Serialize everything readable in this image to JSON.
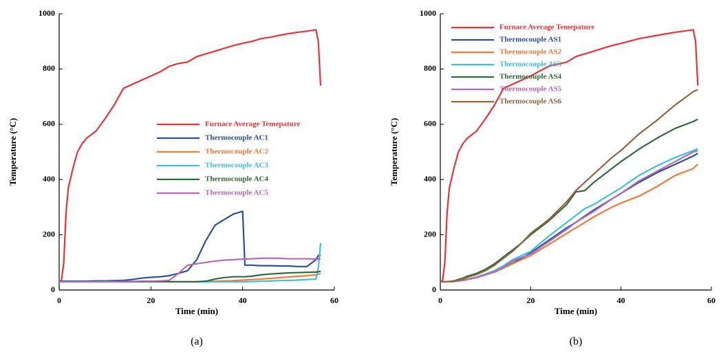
{
  "chart_data": [
    {
      "type": "line",
      "caption": "(a)",
      "xlabel": "Time (min)",
      "ylabel": "Temperature (°C)",
      "xlim": [
        0,
        60
      ],
      "ylim": [
        0,
        1000
      ],
      "xticks": [
        0,
        20,
        40,
        60
      ],
      "yticks": [
        0,
        200,
        400,
        600,
        800,
        1000
      ],
      "grid": false,
      "legend": "center right",
      "x": [
        0,
        0.5,
        1,
        1.5,
        2,
        3,
        4,
        5,
        6,
        8,
        10,
        12,
        14,
        16,
        18,
        20,
        22,
        24,
        26,
        28,
        30,
        32,
        34,
        36,
        38,
        40,
        40.5,
        42,
        44,
        46,
        48,
        50,
        52,
        54,
        56,
        56.5,
        57
      ],
      "series": [
        {
          "name": "Furnace Average Temepature",
          "color": "#e8333a",
          "values": [
            30,
            35,
            100,
            280,
            370,
            440,
            500,
            530,
            550,
            575,
            620,
            670,
            730,
            745,
            760,
            775,
            790,
            810,
            820,
            825,
            845,
            855,
            865,
            875,
            885,
            893,
            895,
            900,
            910,
            915,
            922,
            928,
            933,
            937,
            942,
            900,
            740
          ]
        },
        {
          "name": "Thermocouple AC1",
          "color": "#2b4f9e",
          "values": [
            32,
            32,
            32,
            32,
            32,
            32,
            32,
            32,
            32,
            33,
            33,
            34,
            35,
            38,
            43,
            46,
            48,
            52,
            60,
            70,
            110,
            180,
            235,
            255,
            275,
            285,
            90,
            90,
            88,
            88,
            87,
            87,
            85,
            85,
            110,
            125,
            125
          ]
        },
        {
          "name": "Thermocouple AC2",
          "color": "#f07b3a",
          "values": [
            30,
            30,
            30,
            30,
            30,
            30,
            30,
            30,
            30,
            30,
            30,
            30,
            30,
            30,
            30,
            30,
            30,
            30,
            30,
            30,
            30,
            31,
            32,
            33,
            34,
            36,
            36,
            38,
            40,
            42,
            45,
            47,
            50,
            52,
            55,
            57,
            60
          ]
        },
        {
          "name": "Thermocouple AC3",
          "color": "#3dbfe8",
          "values": [
            30,
            30,
            30,
            30,
            30,
            30,
            30,
            30,
            30,
            30,
            30,
            30,
            30,
            30,
            30,
            30,
            30,
            30,
            30,
            30,
            30,
            30,
            30,
            30,
            30,
            30,
            30,
            31,
            32,
            33,
            34,
            35,
            36,
            38,
            40,
            80,
            170
          ]
        },
        {
          "name": "Thermocouple AC4",
          "color": "#2e6b3c",
          "values": [
            30,
            30,
            30,
            30,
            30,
            30,
            30,
            30,
            30,
            30,
            30,
            30,
            30,
            30,
            30,
            30,
            30,
            30,
            30,
            30,
            30,
            32,
            40,
            45,
            48,
            48,
            48,
            50,
            55,
            58,
            60,
            62,
            63,
            64,
            65,
            66,
            68
          ]
        },
        {
          "name": "Thermocouple AC5",
          "color": "#b56ab5",
          "values": [
            30,
            30,
            30,
            30,
            30,
            30,
            30,
            30,
            30,
            30,
            30,
            30,
            31,
            31,
            32,
            32,
            33,
            35,
            60,
            90,
            95,
            100,
            105,
            108,
            110,
            112,
            112,
            113,
            115,
            115,
            115,
            113,
            113,
            113,
            112,
            112,
            112
          ]
        }
      ]
    },
    {
      "type": "line",
      "caption": "(b)",
      "xlabel": "Time (min)",
      "ylabel": "Temperature (°C)",
      "xlim": [
        0,
        60
      ],
      "ylim": [
        0,
        1000
      ],
      "xticks": [
        0,
        20,
        40,
        60
      ],
      "yticks": [
        0,
        200,
        400,
        600,
        800,
        1000
      ],
      "grid": false,
      "legend": "upper left",
      "x": [
        0,
        0.5,
        1,
        1.5,
        2,
        3,
        4,
        5,
        6,
        8,
        10,
        12,
        14,
        16,
        18,
        20,
        24,
        28,
        30,
        32,
        34,
        38,
        40,
        44,
        48,
        52,
        56,
        56.5,
        57
      ],
      "series": [
        {
          "name": "Furnace Average Temepature",
          "color": "#e8333a",
          "values": [
            30,
            35,
            100,
            280,
            370,
            440,
            500,
            530,
            550,
            575,
            620,
            670,
            730,
            745,
            760,
            775,
            810,
            825,
            845,
            855,
            865,
            885,
            893,
            910,
            922,
            933,
            942,
            900,
            740
          ]
        },
        {
          "name": "Thermocouple AS1",
          "color": "#2b4f9e",
          "values": [
            30,
            30,
            30,
            30,
            30,
            31,
            33,
            35,
            38,
            45,
            55,
            65,
            80,
            97,
            115,
            135,
            180,
            225,
            245,
            268,
            290,
            330,
            350,
            390,
            425,
            455,
            485,
            490,
            495
          ]
        },
        {
          "name": "Thermocouple AS2",
          "color": "#f07b3a",
          "values": [
            30,
            30,
            30,
            30,
            30,
            31,
            33,
            35,
            38,
            45,
            55,
            65,
            80,
            95,
            110,
            125,
            165,
            205,
            225,
            245,
            265,
            300,
            315,
            340,
            375,
            415,
            440,
            448,
            455
          ]
        },
        {
          "name": "Thermocouple AS3",
          "color": "#3dbfe8",
          "values": [
            30,
            30,
            30,
            30,
            30,
            31,
            33,
            35,
            39,
            47,
            58,
            70,
            88,
            110,
            125,
            140,
            195,
            245,
            270,
            295,
            310,
            350,
            370,
            415,
            450,
            480,
            505,
            508,
            512
          ]
        },
        {
          "name": "Thermocouple AS4",
          "color": "#2e6b3c",
          "values": [
            30,
            30,
            30,
            30,
            31,
            33,
            38,
            43,
            50,
            60,
            75,
            95,
            120,
            145,
            170,
            200,
            250,
            310,
            355,
            360,
            390,
            440,
            465,
            510,
            550,
            585,
            610,
            614,
            618
          ]
        },
        {
          "name": "Thermocouple AS5",
          "color": "#b56ab5",
          "values": [
            30,
            30,
            30,
            30,
            30,
            31,
            33,
            35,
            38,
            46,
            56,
            67,
            83,
            105,
            118,
            130,
            175,
            220,
            245,
            265,
            285,
            330,
            350,
            395,
            430,
            465,
            500,
            502,
            505
          ]
        },
        {
          "name": "Thermocouple AS6",
          "color": "#93643f",
          "values": [
            30,
            30,
            30,
            30,
            31,
            32,
            36,
            40,
            46,
            56,
            70,
            90,
            115,
            140,
            170,
            205,
            255,
            320,
            360,
            390,
            420,
            480,
            505,
            565,
            615,
            670,
            718,
            722,
            725
          ]
        }
      ]
    }
  ]
}
